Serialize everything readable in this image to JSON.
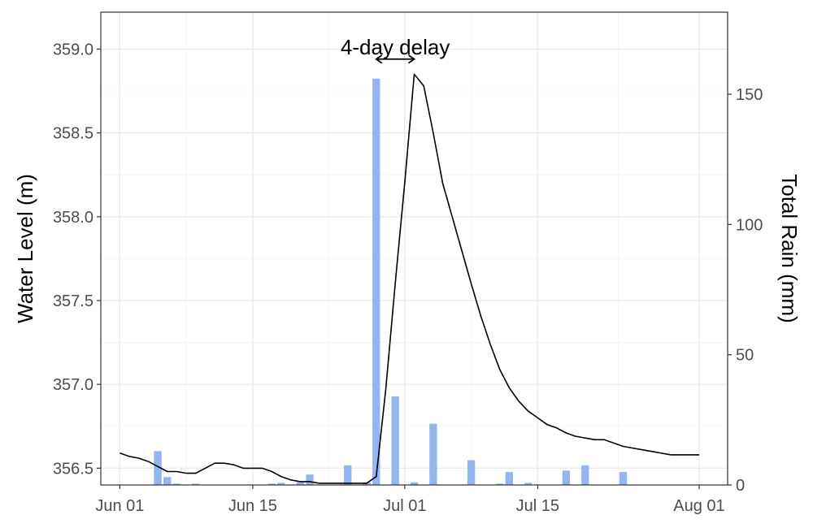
{
  "chart_data": {
    "type": "bar+line",
    "title": "",
    "x_axis": {
      "type": "date",
      "range": [
        "2023-05-30",
        "2023-08-04"
      ],
      "ticks": [
        {
          "date": "2023-06-01",
          "label": "Jun 01"
        },
        {
          "date": "2023-06-15",
          "label": "Jun 15"
        },
        {
          "date": "2023-07-01",
          "label": "Jul 01"
        },
        {
          "date": "2023-07-15",
          "label": "Jul 15"
        },
        {
          "date": "2023-08-01",
          "label": "Aug 01"
        }
      ],
      "label": ""
    },
    "y_left": {
      "label": "Water Level (m)",
      "range": [
        356.4,
        359.22
      ],
      "ticks": [
        "356.5",
        "357.0",
        "357.5",
        "358.0",
        "358.5",
        "359.0"
      ]
    },
    "y_right": {
      "label": "Total Rain (mm)",
      "range": [
        0,
        181.5
      ],
      "ticks": [
        "0",
        "50",
        "100",
        "150"
      ]
    },
    "grid": true,
    "annotation": {
      "text": "4-day delay",
      "arrow_from": "2023-06-28",
      "arrow_to": "2023-07-02",
      "level": 358.94
    },
    "bar_color": "#93b5f0",
    "line_color": "#000000",
    "rain_series": {
      "dates": [
        "2023-06-05",
        "2023-06-06",
        "2023-06-07",
        "2023-06-09",
        "2023-06-17",
        "2023-06-18",
        "2023-06-20",
        "2023-06-21",
        "2023-06-25",
        "2023-06-27",
        "2023-06-28",
        "2023-06-30",
        "2023-07-02",
        "2023-07-04",
        "2023-07-08",
        "2023-07-11",
        "2023-07-12",
        "2023-07-14",
        "2023-07-18",
        "2023-07-20",
        "2023-07-24"
      ],
      "values": [
        13,
        3,
        0.5,
        0.5,
        0.5,
        0.8,
        1.2,
        4,
        7.5,
        1,
        156,
        34,
        1,
        23.5,
        9.5,
        0.5,
        5,
        0.8,
        5.5,
        7.5,
        5
      ]
    },
    "water_series": {
      "dates": [
        "2023-06-01",
        "2023-06-02",
        "2023-06-03",
        "2023-06-04",
        "2023-06-05",
        "2023-06-06",
        "2023-06-07",
        "2023-06-08",
        "2023-06-09",
        "2023-06-10",
        "2023-06-11",
        "2023-06-12",
        "2023-06-13",
        "2023-06-14",
        "2023-06-15",
        "2023-06-16",
        "2023-06-17",
        "2023-06-18",
        "2023-06-19",
        "2023-06-20",
        "2023-06-21",
        "2023-06-22",
        "2023-06-23",
        "2023-06-24",
        "2023-06-25",
        "2023-06-26",
        "2023-06-27",
        "2023-06-28",
        "2023-06-29",
        "2023-06-30",
        "2023-07-01",
        "2023-07-02",
        "2023-07-03",
        "2023-07-04",
        "2023-07-05",
        "2023-07-06",
        "2023-07-07",
        "2023-07-08",
        "2023-07-09",
        "2023-07-10",
        "2023-07-11",
        "2023-07-12",
        "2023-07-13",
        "2023-07-14",
        "2023-07-15",
        "2023-07-16",
        "2023-07-17",
        "2023-07-18",
        "2023-07-19",
        "2023-07-20",
        "2023-07-21",
        "2023-07-22",
        "2023-07-23",
        "2023-07-24",
        "2023-07-25",
        "2023-07-26",
        "2023-07-27",
        "2023-07-28",
        "2023-07-29",
        "2023-07-30",
        "2023-07-31",
        "2023-08-01"
      ],
      "values": [
        356.59,
        356.57,
        356.56,
        356.54,
        356.51,
        356.48,
        356.48,
        356.47,
        356.47,
        356.5,
        356.53,
        356.53,
        356.52,
        356.5,
        356.5,
        356.5,
        356.48,
        356.45,
        356.43,
        356.42,
        356.42,
        356.41,
        356.41,
        356.41,
        356.41,
        356.41,
        356.41,
        356.45,
        356.97,
        357.6,
        358.2,
        358.85,
        358.78,
        358.5,
        358.2,
        358.0,
        357.8,
        357.6,
        357.41,
        357.24,
        357.09,
        356.98,
        356.9,
        356.84,
        356.8,
        356.76,
        356.74,
        356.71,
        356.69,
        356.68,
        356.67,
        356.67,
        356.65,
        356.63,
        356.62,
        356.61,
        356.6,
        356.59,
        356.58,
        356.58,
        356.58,
        356.58
      ]
    }
  }
}
